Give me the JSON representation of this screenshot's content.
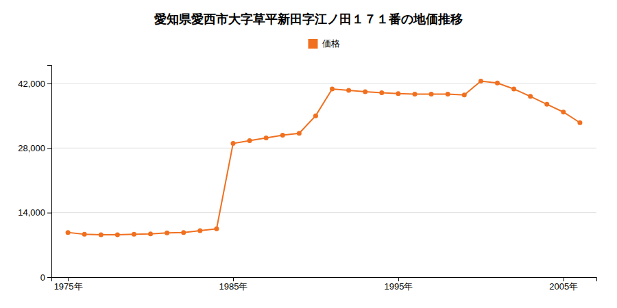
{
  "chart_data": {
    "type": "line",
    "title": "愛知県愛西市大字草平新田字江ノ田１７１番の地価推移",
    "x": [
      1975,
      1976,
      1977,
      1978,
      1979,
      1980,
      1981,
      1982,
      1983,
      1984,
      1985,
      1986,
      1987,
      1988,
      1989,
      1990,
      1991,
      1992,
      1993,
      1994,
      1995,
      1996,
      1997,
      1998,
      1999,
      2000,
      2001,
      2002,
      2003,
      2004,
      2005,
      2006
    ],
    "series": [
      {
        "name": "価格",
        "color": "#f07020",
        "marker": "circle",
        "values": [
          9700,
          9300,
          9200,
          9200,
          9300,
          9400,
          9600,
          9700,
          10100,
          10500,
          29000,
          29600,
          30200,
          30800,
          31200,
          35000,
          40800,
          40500,
          40200,
          40000,
          39800,
          39700,
          39700,
          39700,
          39500,
          42500,
          42100,
          40800,
          39200,
          37500,
          35800,
          33500
        ]
      }
    ],
    "xlim": [
      1974,
      2007
    ],
    "xticks": [
      {
        "value": 1975,
        "label": "1975年"
      },
      {
        "value": 1985,
        "label": "1985年"
      },
      {
        "value": 1995,
        "label": "1995年"
      },
      {
        "value": 2005,
        "label": "2005年"
      }
    ],
    "ylim": [
      0,
      46000
    ],
    "yticks": [
      0,
      {
        "value": 14000,
        "label": "14,000"
      },
      {
        "value": 28000,
        "label": "28,000"
      },
      {
        "value": 42000,
        "label": "42,000"
      }
    ],
    "grid": true,
    "legend": "top"
  }
}
